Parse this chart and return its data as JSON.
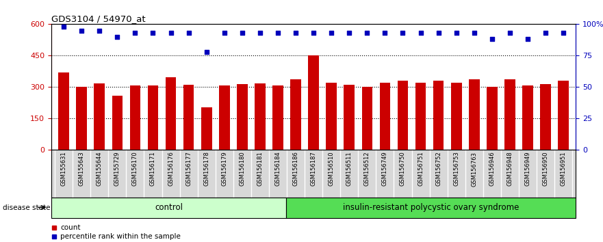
{
  "title": "GDS3104 / 54970_at",
  "samples": [
    "GSM155631",
    "GSM155643",
    "GSM155644",
    "GSM155729",
    "GSM156170",
    "GSM156171",
    "GSM156176",
    "GSM156177",
    "GSM156178",
    "GSM156179",
    "GSM156180",
    "GSM156181",
    "GSM156184",
    "GSM156186",
    "GSM156187",
    "GSM156510",
    "GSM156511",
    "GSM156512",
    "GSM156749",
    "GSM156750",
    "GSM156751",
    "GSM156752",
    "GSM156753",
    "GSM156763",
    "GSM156946",
    "GSM156948",
    "GSM156949",
    "GSM156950",
    "GSM156951"
  ],
  "counts": [
    370,
    302,
    318,
    258,
    308,
    308,
    348,
    312,
    205,
    308,
    315,
    318,
    308,
    338,
    450,
    320,
    312,
    302,
    320,
    332,
    322,
    332,
    320,
    338,
    302,
    338,
    308,
    315,
    330
  ],
  "percentiles": [
    98,
    95,
    95,
    90,
    93,
    93,
    93,
    93,
    78,
    93,
    93,
    93,
    93,
    93,
    93,
    93,
    93,
    93,
    93,
    93,
    93,
    93,
    93,
    93,
    88,
    93,
    88,
    93,
    93
  ],
  "control_count": 13,
  "disease_count": 16,
  "bar_color": "#cc0000",
  "dot_color": "#0000bb",
  "ylim_left": [
    0,
    600
  ],
  "ylim_right": [
    0,
    100
  ],
  "yticks_left": [
    0,
    150,
    300,
    450,
    600
  ],
  "yticks_right": [
    0,
    25,
    50,
    75,
    100
  ],
  "ytick_labels_left": [
    "0",
    "150",
    "300",
    "450",
    "600"
  ],
  "ytick_labels_right": [
    "0",
    "25",
    "50",
    "75",
    "100%"
  ],
  "gridlines": [
    150,
    300,
    450
  ],
  "group_labels": [
    "control",
    "insulin-resistant polycystic ovary syndrome"
  ],
  "control_color": "#ccffcc",
  "disease_color": "#55dd55",
  "legend_items": [
    {
      "label": "count",
      "color": "#cc0000"
    },
    {
      "label": "percentile rank within the sample",
      "color": "#0000bb"
    }
  ],
  "label_bg_color": "#d8d8d8",
  "left_axis_color": "#cc0000",
  "right_axis_color": "#0000bb"
}
